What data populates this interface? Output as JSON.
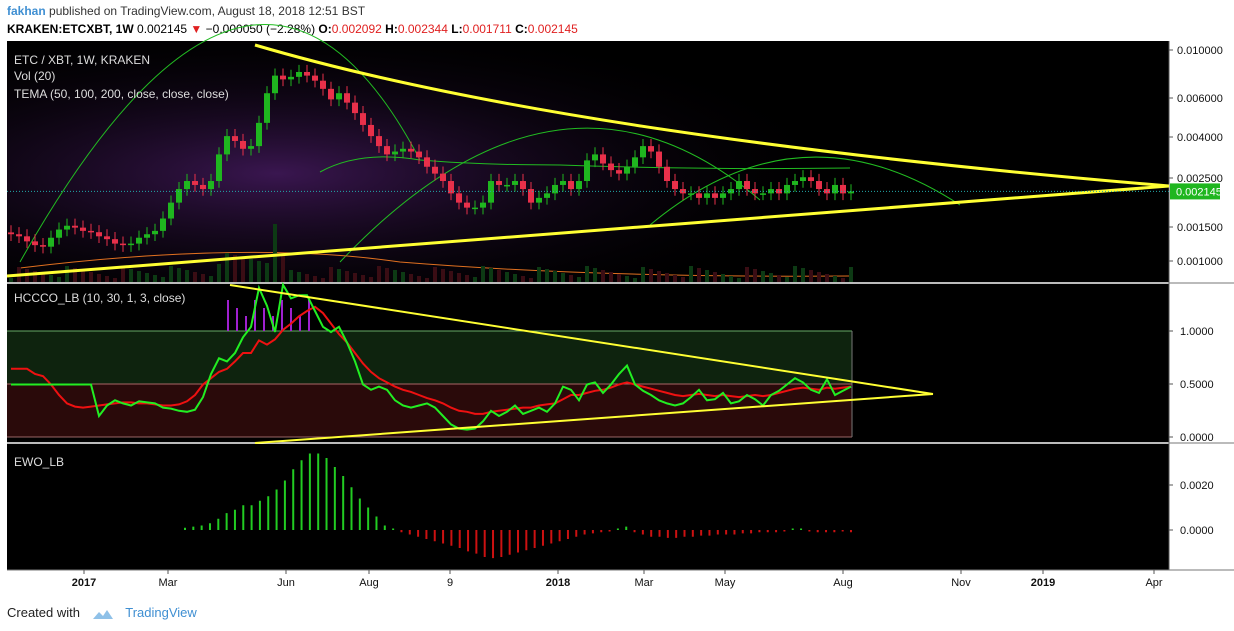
{
  "header": {
    "author": "fakhan",
    "published_text": "published on TradingView.com, August 18, 2018 12:51 BST",
    "symbol": "KRAKEN:ETCXBT, 1W",
    "last": "0.002145",
    "change": "−0.000050 (−2.28%)",
    "o_label": "O:",
    "o_value": "0.002092",
    "h_label": "H:",
    "h_value": "0.002344",
    "l_label": "L:",
    "l_value": "0.001711",
    "c_label": "C:",
    "c_value": "0.002145"
  },
  "footer": {
    "created_with": "Created with",
    "brand": "TradingView"
  },
  "colors": {
    "up": "#1fb61f",
    "down": "#e8304a",
    "yellow": "#ffff33",
    "hccco_green": "#22ee22",
    "hccco_red": "#ee1111",
    "ewo_green": "#22cc22",
    "ewo_red": "#cc1111",
    "background": "#000000"
  },
  "chart_data": [
    {
      "type": "candlestick",
      "title": "ETC / XBT, 1W, KRAKEN",
      "indicators": [
        "Vol (20)",
        "TEMA (50, 100, 200, close, close, close)"
      ],
      "y_ticks": [
        "0.010000",
        "0.006000",
        "0.004000",
        "0.002500",
        "0.001500",
        "0.001000"
      ],
      "y_scale": "log",
      "last_price_label": "0.002145",
      "x_ticks": [
        "2017",
        "Mar",
        "Jun",
        "Aug",
        "9",
        "2018",
        "Mar",
        "May",
        "Aug",
        "Nov",
        "2019",
        "Apr"
      ],
      "close_series": [
        0.00135,
        0.00132,
        0.00125,
        0.0012,
        0.00118,
        0.0013,
        0.00142,
        0.00148,
        0.00145,
        0.0014,
        0.00138,
        0.00132,
        0.00128,
        0.00122,
        0.0012,
        0.00122,
        0.0013,
        0.00135,
        0.0014,
        0.0016,
        0.0019,
        0.0022,
        0.0024,
        0.0023,
        0.0022,
        0.0024,
        0.0032,
        0.0039,
        0.0037,
        0.0034,
        0.0035,
        0.0045,
        0.0062,
        0.0075,
        0.0072,
        0.0074,
        0.0078,
        0.0075,
        0.0071,
        0.0065,
        0.0058,
        0.0062,
        0.0056,
        0.005,
        0.0044,
        0.0039,
        0.0035,
        0.0032,
        0.0033,
        0.0034,
        0.0033,
        0.0031,
        0.0028,
        0.0026,
        0.0024,
        0.0021,
        0.0019,
        0.0018,
        0.0018,
        0.0019,
        0.0024,
        0.0023,
        0.0023,
        0.0024,
        0.0022,
        0.0019,
        0.002,
        0.0021,
        0.0023,
        0.0024,
        0.0022,
        0.0024,
        0.003,
        0.0032,
        0.0029,
        0.0027,
        0.0026,
        0.0028,
        0.0031,
        0.0035,
        0.0033,
        0.0028,
        0.0024,
        0.0022,
        0.0021,
        0.0021,
        0.002,
        0.0021,
        0.002,
        0.0021,
        0.0022,
        0.0024,
        0.0022,
        0.0021,
        0.0021,
        0.0022,
        0.0021,
        0.0023,
        0.0024,
        0.0025,
        0.0024,
        0.0022,
        0.0021,
        0.0023,
        0.0021,
        0.002145
      ]
    },
    {
      "type": "line",
      "title": "HCCCO_LB (10, 30, 1, 3, close)",
      "y_ticks": [
        "1.0000",
        "0.5000",
        "0.0000"
      ],
      "series_values": {
        "green": [
          0.5,
          0.5,
          0.5,
          0.5,
          0.5,
          0.5,
          0.5,
          0.5,
          0.5,
          0.5,
          0.5,
          0.2,
          0.3,
          0.35,
          0.32,
          0.3,
          0.34,
          0.33,
          0.32,
          0.28,
          0.27,
          0.25,
          0.24,
          0.26,
          0.38,
          0.6,
          0.75,
          0.72,
          0.8,
          0.95,
          1.05,
          1.42,
          1.25,
          1.0,
          1.45,
          1.32,
          1.35,
          1.35,
          1.2,
          1.05,
          1.0,
          1.05,
          0.9,
          0.72,
          0.5,
          0.45,
          0.48,
          0.45,
          0.35,
          0.3,
          0.28,
          0.3,
          0.32,
          0.28,
          0.2,
          0.12,
          0.08,
          0.07,
          0.08,
          0.15,
          0.25,
          0.2,
          0.24,
          0.3,
          0.22,
          0.25,
          0.28,
          0.24,
          0.32,
          0.48,
          0.45,
          0.35,
          0.5,
          0.52,
          0.42,
          0.5,
          0.6,
          0.68,
          0.5,
          0.44,
          0.4,
          0.35,
          0.32,
          0.3,
          0.32,
          0.38,
          0.45,
          0.35,
          0.36,
          0.42,
          0.32,
          0.34,
          0.4,
          0.36,
          0.3,
          0.4,
          0.44,
          0.5,
          0.56,
          0.52,
          0.45,
          0.42,
          0.55,
          0.4,
          0.44,
          0.48
        ],
        "red": [
          0.65,
          0.65,
          0.65,
          0.6,
          0.58,
          0.5,
          0.4,
          0.32,
          0.29,
          0.28,
          0.29,
          0.3,
          0.31,
          0.32,
          0.33,
          0.33,
          0.32,
          0.32,
          0.31,
          0.3,
          0.3,
          0.31,
          0.34,
          0.4,
          0.5,
          0.56,
          0.62,
          0.65,
          0.72,
          0.8,
          0.8,
          0.92,
          0.88,
          0.93,
          1.02,
          1.08,
          1.15,
          1.2,
          1.24,
          1.18,
          1.08,
          0.98,
          0.9,
          0.8,
          0.7,
          0.62,
          0.56,
          0.52,
          0.48,
          0.45,
          0.43,
          0.4,
          0.37,
          0.35,
          0.32,
          0.28,
          0.25,
          0.24,
          0.22,
          0.22,
          0.24,
          0.25,
          0.26,
          0.27,
          0.28,
          0.28,
          0.3,
          0.31,
          0.32,
          0.36,
          0.4,
          0.4,
          0.42,
          0.44,
          0.45,
          0.47,
          0.5,
          0.52,
          0.5,
          0.48,
          0.46,
          0.44,
          0.42,
          0.4,
          0.39,
          0.4,
          0.41,
          0.4,
          0.39,
          0.4,
          0.39,
          0.38,
          0.39,
          0.4,
          0.39,
          0.4,
          0.42,
          0.44,
          0.46,
          0.47,
          0.46,
          0.45,
          0.47,
          0.46,
          0.47,
          0.48
        ]
      }
    },
    {
      "type": "bar",
      "title": "EWO_LB",
      "y_ticks": [
        "0.0020",
        "0.0000"
      ],
      "values": [
        0.0001,
        0.00015,
        0.0002,
        0.0003,
        0.0005,
        0.00075,
        0.0009,
        0.0011,
        0.0011,
        0.0013,
        0.0015,
        0.0018,
        0.0022,
        0.0027,
        0.0031,
        0.0034,
        0.0034,
        0.0032,
        0.0028,
        0.0024,
        0.0019,
        0.0014,
        0.001,
        0.0006,
        0.0002,
        0.0,
        -0.0001,
        -0.0002,
        -0.0003,
        -0.0004,
        -0.0005,
        -0.0006,
        -0.0007,
        -0.0008,
        -0.00095,
        -0.00105,
        -0.0012,
        -0.00125,
        -0.0012,
        -0.0011,
        -0.001,
        -0.0009,
        -0.0008,
        -0.0007,
        -0.0006,
        -0.0005,
        -0.0004,
        -0.0003,
        -0.0002,
        -0.00015,
        -0.0001,
        -5e-05,
        0.0,
        0.00015,
        -0.0001,
        -0.0002,
        -0.0003,
        -0.0003,
        -0.00035,
        -0.00035,
        -0.0003,
        -0.0003,
        -0.00025,
        -0.00025,
        -0.0002,
        -0.0002,
        -0.0002,
        -0.00015,
        -0.00015,
        -0.0001,
        -0.0001,
        -0.0001,
        -5e-05,
        0.0,
        0.0,
        -5e-05,
        -0.0001,
        -0.0001,
        -0.0001,
        -5e-05,
        -0.0001
      ],
      "colors_by_sign": {
        "positive": "#22cc22",
        "negative": "#cc1111"
      }
    }
  ]
}
